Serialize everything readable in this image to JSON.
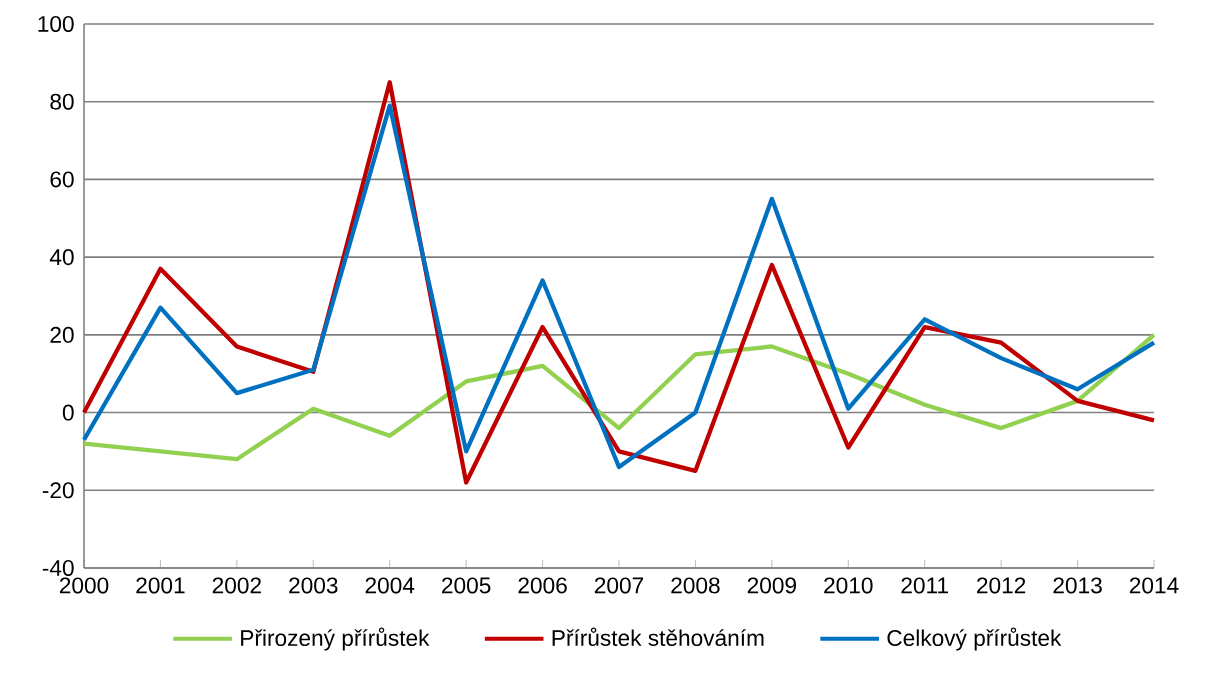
{
  "chart_data": {
    "type": "line",
    "categories": [
      "2000",
      "2001",
      "2002",
      "2003",
      "2004",
      "2005",
      "2006",
      "2007",
      "2008",
      "2009",
      "2010",
      "2011",
      "2012",
      "2013",
      "2014"
    ],
    "series": [
      {
        "name": "Přirozený přírůstek",
        "color": "#92d050",
        "values": [
          -8,
          -10,
          -12,
          1,
          -6,
          8,
          12,
          -4,
          15,
          17,
          10,
          2,
          -4,
          3,
          20
        ]
      },
      {
        "name": "Přírůstek stěhováním",
        "color": "#c00000",
        "values": [
          0,
          37,
          17,
          10.5,
          85,
          -18,
          22,
          -10,
          -15,
          38,
          -9,
          22,
          18,
          3,
          -2
        ]
      },
      {
        "name": "Celkový přírůstek",
        "color": "#0070c0",
        "values": [
          -7,
          27,
          5,
          11,
          79,
          -10,
          34,
          -14,
          0,
          55,
          1,
          24,
          14,
          6,
          18
        ]
      }
    ],
    "ylim": [
      -40,
      100
    ],
    "yticks": [
      -40,
      -20,
      0,
      20,
      40,
      60,
      80,
      100
    ],
    "grid": "y",
    "legend": "bottom"
  }
}
